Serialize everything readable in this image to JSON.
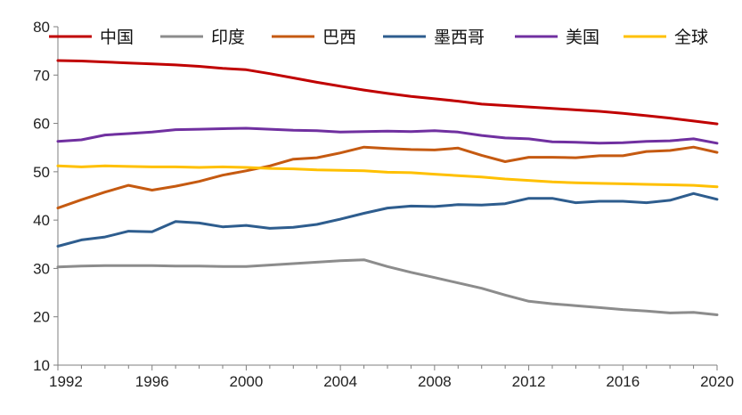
{
  "chart_data": {
    "type": "line",
    "title": "",
    "xlabel": "",
    "ylabel": "",
    "xlim": [
      1992,
      2020
    ],
    "ylim": [
      10,
      80
    ],
    "yticks": [
      10,
      20,
      30,
      40,
      50,
      60,
      70,
      80
    ],
    "xticks": [
      1992,
      1996,
      2000,
      2004,
      2008,
      2012,
      2016,
      2020
    ],
    "legend_position": "top",
    "grid": false,
    "x": [
      1992,
      1993,
      1994,
      1995,
      1996,
      1997,
      1998,
      1999,
      2000,
      2001,
      2002,
      2003,
      2004,
      2005,
      2006,
      2007,
      2008,
      2009,
      2010,
      2011,
      2012,
      2013,
      2014,
      2015,
      2016,
      2017,
      2018,
      2019,
      2020
    ],
    "series": [
      {
        "name": "中国",
        "color": "#c00000",
        "values": [
          73.0,
          72.9,
          72.7,
          72.5,
          72.3,
          72.1,
          71.8,
          71.4,
          71.1,
          70.3,
          69.4,
          68.5,
          67.7,
          66.9,
          66.2,
          65.6,
          65.1,
          64.6,
          64.0,
          63.7,
          63.4,
          63.1,
          62.8,
          62.5,
          62.1,
          61.6,
          61.1,
          60.5,
          59.9
        ]
      },
      {
        "name": "印度",
        "color": "#8c8c8c",
        "values": [
          30.3,
          30.5,
          30.6,
          30.6,
          30.6,
          30.5,
          30.5,
          30.4,
          30.4,
          30.7,
          31.0,
          31.3,
          31.6,
          31.8,
          30.4,
          29.2,
          28.1,
          27.0,
          25.9,
          24.5,
          23.2,
          22.7,
          22.3,
          21.9,
          21.5,
          21.2,
          20.8,
          20.9,
          20.4
        ]
      },
      {
        "name": "巴西",
        "color": "#c55a11",
        "values": [
          42.5,
          44.2,
          45.8,
          47.2,
          46.2,
          47.0,
          48.0,
          49.3,
          50.2,
          51.2,
          52.6,
          52.9,
          53.9,
          55.1,
          54.8,
          54.6,
          54.5,
          54.9,
          53.4,
          52.1,
          53.0,
          53.0,
          52.9,
          53.3,
          53.3,
          54.2,
          54.4,
          55.1,
          54.0
        ]
      },
      {
        "name": "墨西哥",
        "color": "#2e5d8e",
        "values": [
          34.6,
          35.9,
          36.5,
          37.7,
          37.6,
          39.7,
          39.4,
          38.6,
          38.9,
          38.3,
          38.5,
          39.1,
          40.2,
          41.4,
          42.5,
          42.9,
          42.8,
          43.2,
          43.1,
          43.4,
          44.5,
          44.5,
          43.6,
          43.9,
          43.9,
          43.6,
          44.1,
          45.5,
          44.3
        ]
      },
      {
        "name": "美国",
        "color": "#7030a0",
        "values": [
          56.3,
          56.6,
          57.6,
          57.9,
          58.2,
          58.7,
          58.8,
          58.9,
          59.0,
          58.8,
          58.6,
          58.5,
          58.2,
          58.3,
          58.4,
          58.3,
          58.5,
          58.2,
          57.5,
          57.0,
          56.8,
          56.2,
          56.1,
          55.9,
          56.0,
          56.3,
          56.4,
          56.8,
          55.9
        ]
      },
      {
        "name": "全球",
        "color": "#ffc000",
        "values": [
          51.2,
          51.0,
          51.2,
          51.1,
          51.0,
          51.0,
          50.9,
          51.0,
          50.9,
          50.7,
          50.6,
          50.4,
          50.3,
          50.2,
          49.9,
          49.8,
          49.5,
          49.2,
          48.9,
          48.5,
          48.2,
          47.9,
          47.7,
          47.6,
          47.5,
          47.4,
          47.3,
          47.2,
          46.9
        ]
      }
    ]
  }
}
